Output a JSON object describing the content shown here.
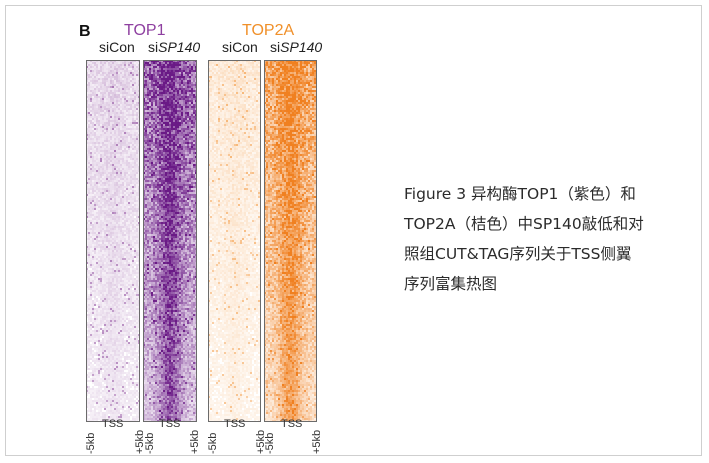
{
  "figure": {
    "panel_letter": "B",
    "groups": [
      {
        "title": "TOP1",
        "color": "#8e3fa0"
      },
      {
        "title": "TOP2A",
        "color": "#f0902a"
      }
    ],
    "columns": [
      {
        "label_plain": "si",
        "label_italic": "Con",
        "group": "TOP1",
        "base": "#7a2a8c",
        "intensity": "low"
      },
      {
        "label_plain": "si",
        "label_italic": "SP140",
        "group": "TOP1",
        "base": "#6a1a86",
        "intensity": "high"
      },
      {
        "label_plain": "si",
        "label_italic": "Con",
        "group": "TOP2A",
        "base": "#f28c28",
        "intensity": "low"
      },
      {
        "label_plain": "si",
        "label_italic": "SP140",
        "group": "TOP2A",
        "base": "#f08020",
        "intensity": "high"
      }
    ],
    "axis_ticks": [
      "-5kb",
      "TSS",
      "+5kb"
    ]
  },
  "caption": {
    "lines": [
      "Figure 3 异构酶TOP1（紫色）和",
      "TOP2A（桔色）中SP140敲低和对",
      "照组CUT&TAG序列关于TSS侧翼",
      "序列富集热图"
    ]
  }
}
